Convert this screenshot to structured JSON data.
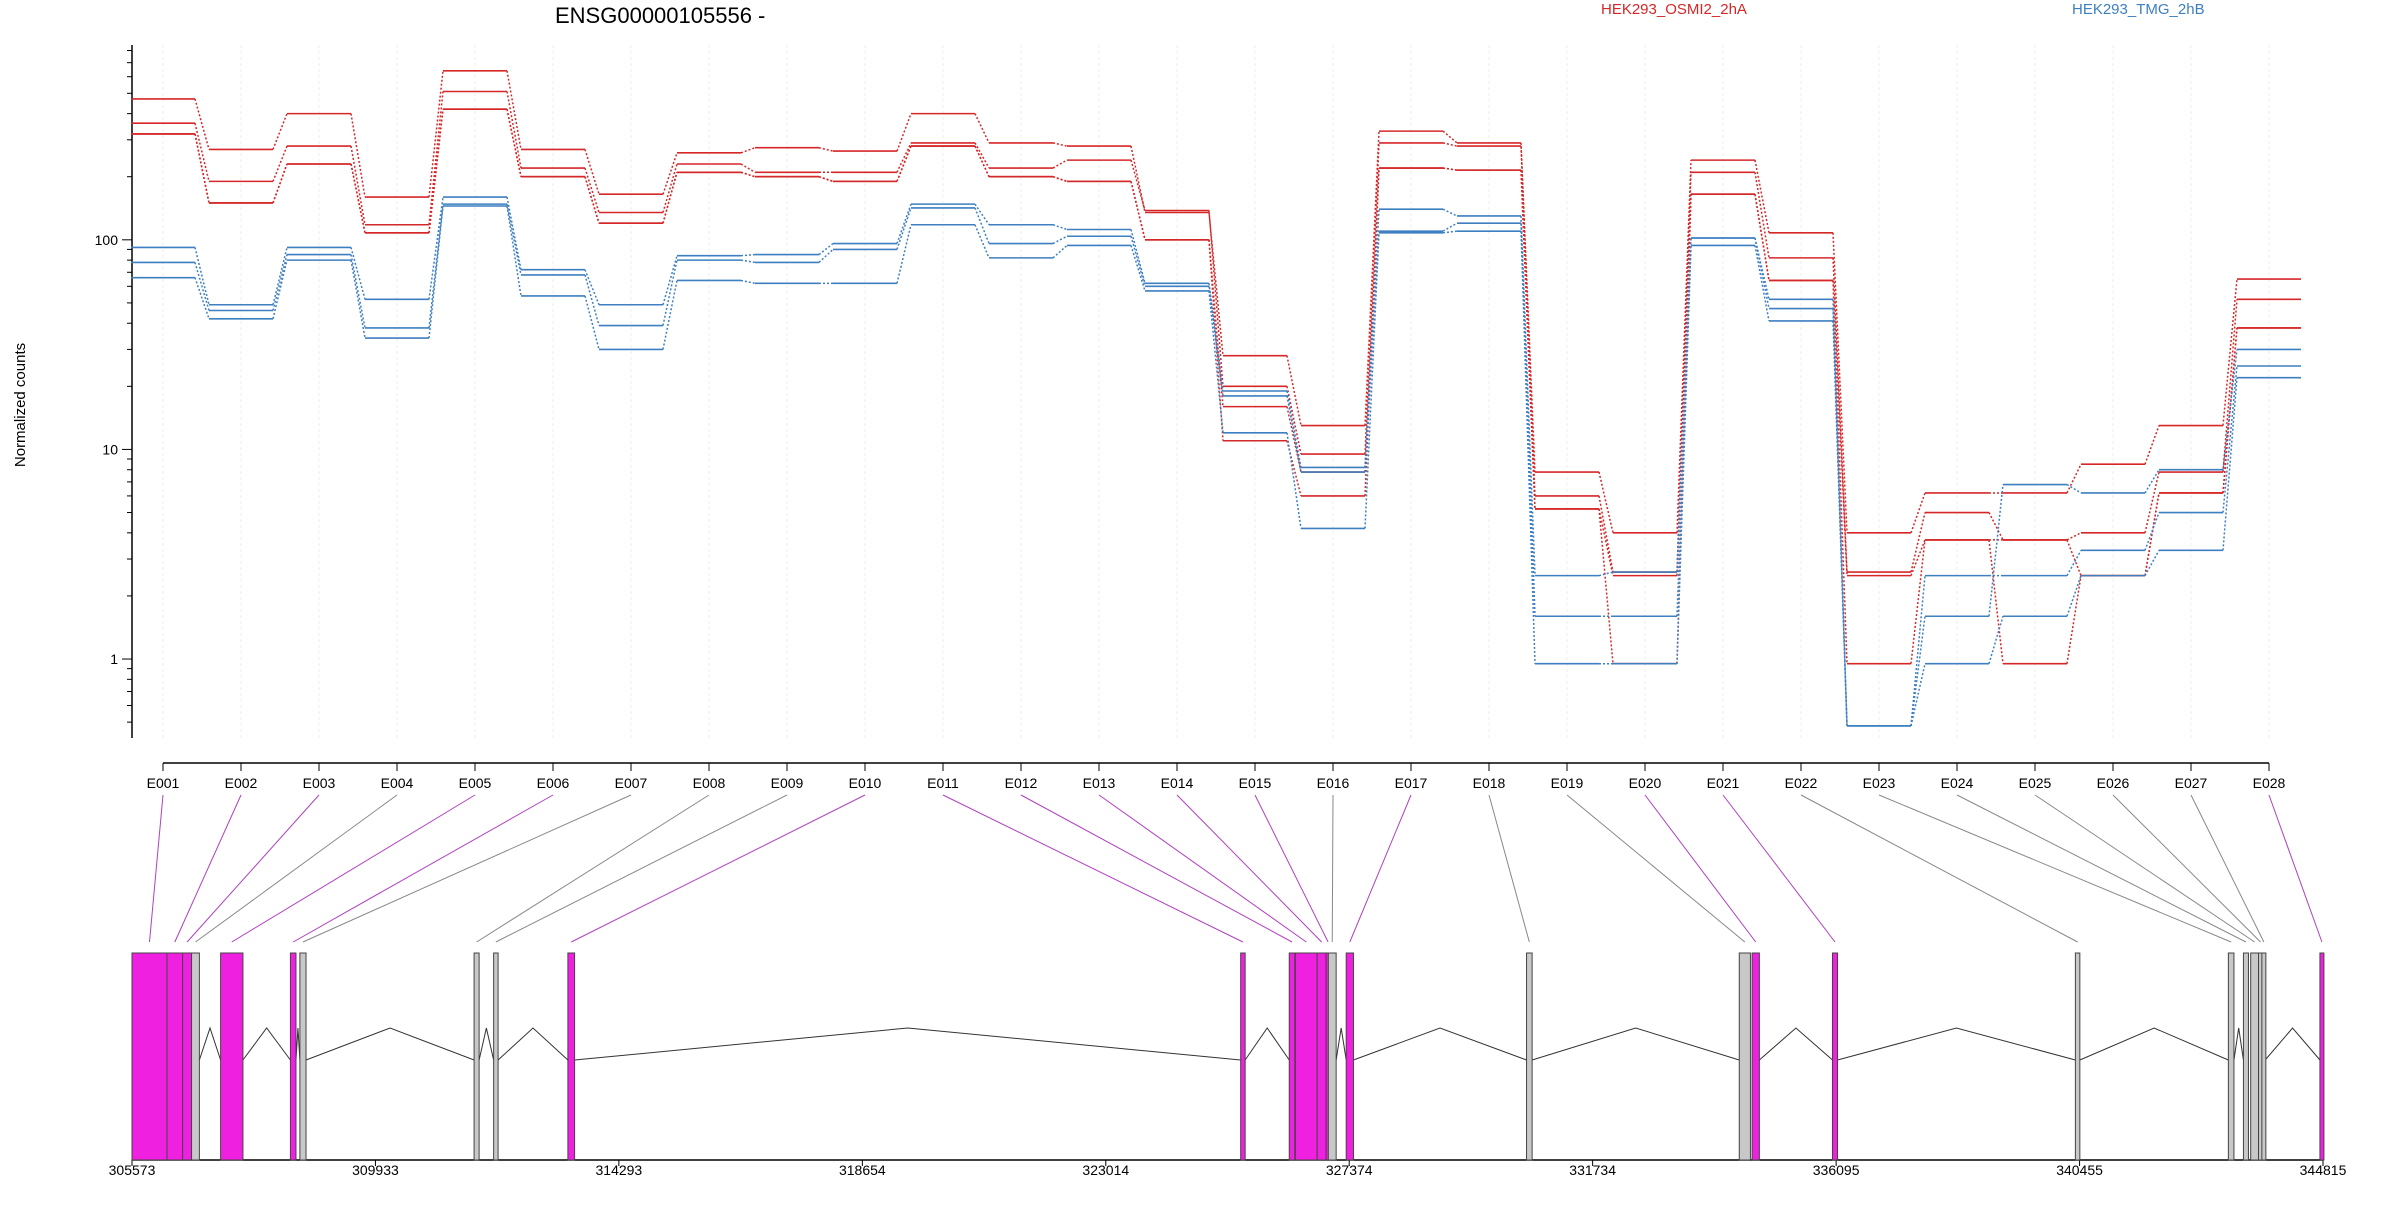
{
  "title": "ENSG00000105556 -",
  "ylabel": "Normalized counts",
  "legend": [
    {
      "label": "HEK293_OSMI2_2hA",
      "color": "#d62728"
    },
    {
      "label": "HEK293_TMG_2hB",
      "color": "#3d7fc0"
    }
  ],
  "chart_data": {
    "type": "line",
    "y_scale": "log",
    "ylim": [
      0.42,
      850
    ],
    "yticks": [
      "1",
      "10",
      "100"
    ],
    "categories": [
      "E001",
      "E002",
      "E003",
      "E004",
      "E005",
      "E006",
      "E007",
      "E008",
      "E009",
      "E010",
      "E011",
      "E012",
      "E013",
      "E014",
      "E015",
      "E016",
      "E017",
      "E018",
      "E019",
      "E020",
      "E021",
      "E022",
      "E023",
      "E024",
      "E025",
      "E026",
      "E027",
      "E028"
    ],
    "series": [
      {
        "group": "HEK293_OSMI2_2hA",
        "color": "#d62728",
        "values": [
          470,
          270,
          400,
          160,
          640,
          270,
          165,
          260,
          275,
          265,
          400,
          290,
          280,
          135,
          28,
          13,
          330,
          290,
          7.8,
          4.0,
          240,
          108,
          4.0,
          6.2,
          6.2,
          8.5,
          13,
          65
        ]
      },
      {
        "group": "HEK293_OSMI2_2hA",
        "color": "#d62728",
        "values": [
          360,
          190,
          280,
          118,
          510,
          220,
          135,
          230,
          210,
          210,
          290,
          220,
          240,
          138,
          20,
          9.5,
          290,
          280,
          6.0,
          2.6,
          210,
          82,
          2.6,
          5.0,
          3.7,
          4.0,
          7.8,
          52
        ]
      },
      {
        "group": "HEK293_OSMI2_2hA",
        "color": "#d62728",
        "values": [
          320,
          150,
          230,
          108,
          420,
          200,
          120,
          210,
          200,
          190,
          280,
          200,
          190,
          100,
          16,
          7.8,
          220,
          215,
          5.2,
          2.5,
          165,
          64,
          0.95,
          3.7,
          0.95,
          2.5,
          6.2,
          38
        ]
      },
      {
        "group": "HEK293_OSMI2_2hA",
        "color": "#d62728",
        "values": [
          320,
          150,
          230,
          108,
          420,
          200,
          120,
          210,
          200,
          190,
          280,
          200,
          190,
          100,
          11,
          6.0,
          220,
          215,
          5.2,
          0.95,
          165,
          64,
          2.5,
          3.7,
          3.7,
          2.5,
          6.2,
          38
        ]
      },
      {
        "group": "HEK293_TMG_2hB",
        "color": "#3d7fc0",
        "values": [
          92,
          49,
          92,
          52,
          160,
          72,
          49,
          84,
          85,
          96,
          148,
          118,
          112,
          62,
          19,
          8.2,
          140,
          130,
          2.5,
          2.6,
          102,
          52,
          0.48,
          1.6,
          6.8,
          6.2,
          8.0,
          30
        ]
      },
      {
        "group": "HEK293_TMG_2hB",
        "color": "#3d7fc0",
        "values": [
          78,
          46,
          85,
          38,
          148,
          68,
          39,
          80,
          78,
          90,
          142,
          96,
          104,
          60,
          18,
          7.8,
          110,
          120,
          1.6,
          1.6,
          102,
          47,
          0.48,
          2.5,
          2.5,
          3.3,
          5.0,
          25
        ]
      },
      {
        "group": "HEK293_TMG_2hB",
        "color": "#3d7fc0",
        "values": [
          66,
          42,
          80,
          34,
          145,
          54,
          30,
          64,
          62,
          62,
          118,
          82,
          94,
          57,
          12,
          4.2,
          108,
          110,
          0.95,
          0.95,
          94,
          41,
          0.48,
          0.95,
          1.6,
          2.5,
          3.3,
          22
        ]
      }
    ],
    "genomic_axis": {
      "range": [
        305573,
        344815
      ],
      "ticks": [
        "305573",
        "309933",
        "314293",
        "318654",
        "323014",
        "327374",
        "331734",
        "336095",
        "340455",
        "344815"
      ]
    },
    "exons": [
      {
        "id": "E001",
        "start": 305573,
        "end": 306200,
        "color": "magenta"
      },
      {
        "id": "E002",
        "start": 306200,
        "end": 306480,
        "color": "magenta"
      },
      {
        "id": "E003",
        "start": 306480,
        "end": 306640,
        "color": "magenta"
      },
      {
        "id": "E004",
        "start": 306640,
        "end": 306780,
        "color": "grey"
      },
      {
        "id": "E005",
        "start": 307160,
        "end": 307560,
        "color": "magenta"
      },
      {
        "id": "E006",
        "start": 308410,
        "end": 308510,
        "color": "magenta"
      },
      {
        "id": "E007",
        "start": 308580,
        "end": 308690,
        "color": "grey"
      },
      {
        "id": "E008",
        "start": 311700,
        "end": 311790,
        "color": "grey"
      },
      {
        "id": "E009",
        "start": 312050,
        "end": 312130,
        "color": "grey"
      },
      {
        "id": "E010",
        "start": 313380,
        "end": 313500,
        "color": "magenta"
      },
      {
        "id": "E011",
        "start": 325430,
        "end": 325510,
        "color": "magenta"
      },
      {
        "id": "E012",
        "start": 326300,
        "end": 326400,
        "color": "magenta"
      },
      {
        "id": "E013",
        "start": 326410,
        "end": 326800,
        "color": "magenta"
      },
      {
        "id": "E014",
        "start": 326800,
        "end": 326960,
        "color": "magenta"
      },
      {
        "id": "E015",
        "start": 326960,
        "end": 327000,
        "color": "magenta"
      },
      {
        "id": "E016",
        "start": 327000,
        "end": 327140,
        "color": "grey"
      },
      {
        "id": "E017",
        "start": 327320,
        "end": 327450,
        "color": "magenta"
      },
      {
        "id": "E018",
        "start": 330550,
        "end": 330650,
        "color": "grey"
      },
      {
        "id": "E019",
        "start": 334360,
        "end": 334560,
        "color": "grey"
      },
      {
        "id": "E020",
        "start": 334590,
        "end": 334720,
        "color": "magenta"
      },
      {
        "id": "E021",
        "start": 336030,
        "end": 336120,
        "color": "magenta"
      },
      {
        "id": "E022",
        "start": 340380,
        "end": 340460,
        "color": "grey"
      },
      {
        "id": "E023",
        "start": 343120,
        "end": 343220,
        "color": "grey"
      },
      {
        "id": "E024",
        "start": 343390,
        "end": 343480,
        "color": "grey"
      },
      {
        "id": "E025",
        "start": 343520,
        "end": 343660,
        "color": "grey"
      },
      {
        "id": "E026",
        "start": 343660,
        "end": 343720,
        "color": "grey"
      },
      {
        "id": "E027",
        "start": 343720,
        "end": 343780,
        "color": "grey"
      },
      {
        "id": "E028",
        "start": 344760,
        "end": 344815,
        "color": "magenta"
      }
    ]
  }
}
